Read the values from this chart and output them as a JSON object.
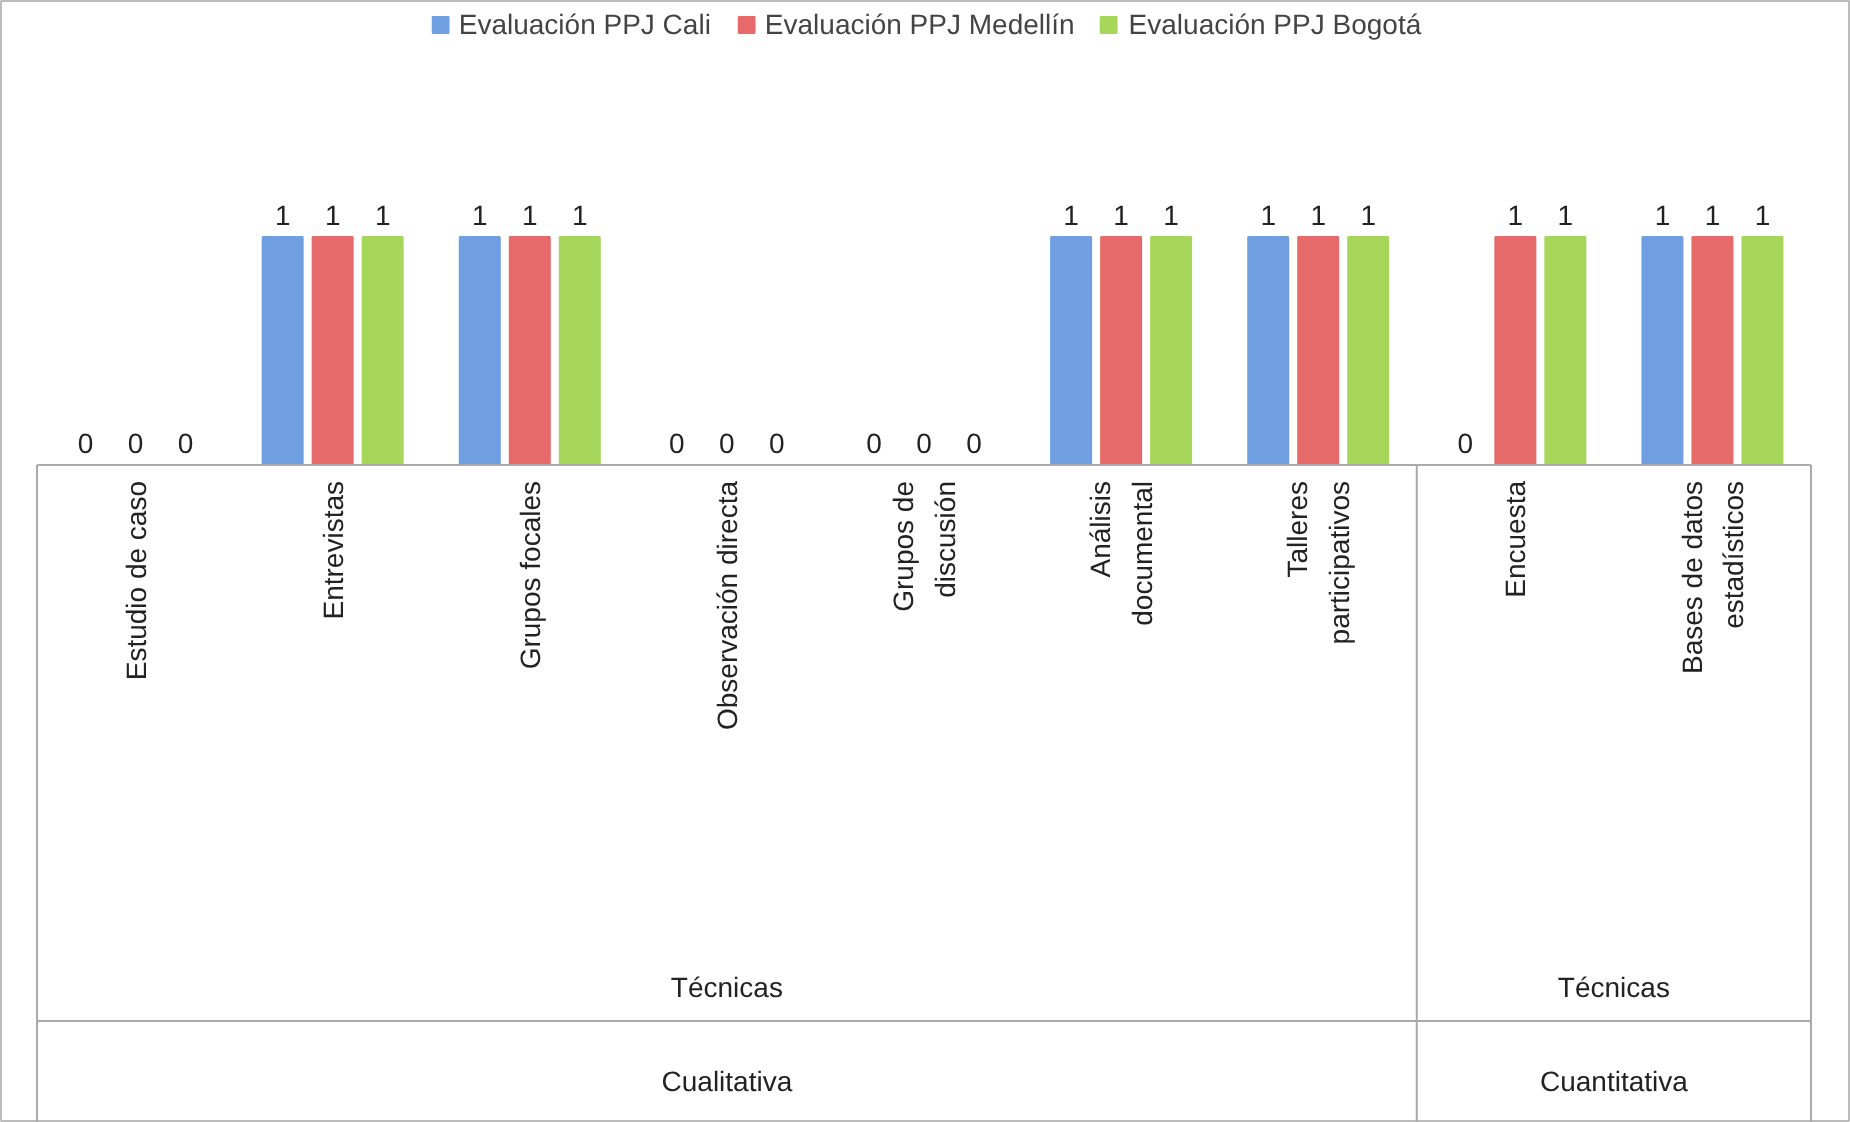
{
  "chart_data": {
    "type": "bar",
    "categories": [
      "Estudio de caso",
      "Entrevistas",
      "Grupos focales",
      "Observación directa",
      "Grupos de\ndiscusión",
      "Análisis\ndocumental",
      "Talleres\nparticipativos",
      "Encuesta",
      "Bases de datos\nestadísticos"
    ],
    "series": [
      {
        "name": "Evaluación PPJ Cali",
        "color": "#6f9fe0",
        "values": [
          0,
          1,
          1,
          0,
          0,
          1,
          1,
          0,
          1
        ]
      },
      {
        "name": "Evaluación PPJ Medellín",
        "color": "#e66a6a",
        "values": [
          0,
          1,
          1,
          0,
          0,
          1,
          1,
          1,
          1
        ]
      },
      {
        "name": "Evaluación PPJ Bogotá",
        "color": "#a6d65a",
        "values": [
          0,
          1,
          1,
          0,
          0,
          1,
          1,
          1,
          1
        ]
      }
    ],
    "annotations": [
      "Técnicas",
      "Técnicas",
      "Cualitativa",
      "Cuantitativa"
    ],
    "data_labels": true,
    "legend": "top",
    "grid": false
  }
}
